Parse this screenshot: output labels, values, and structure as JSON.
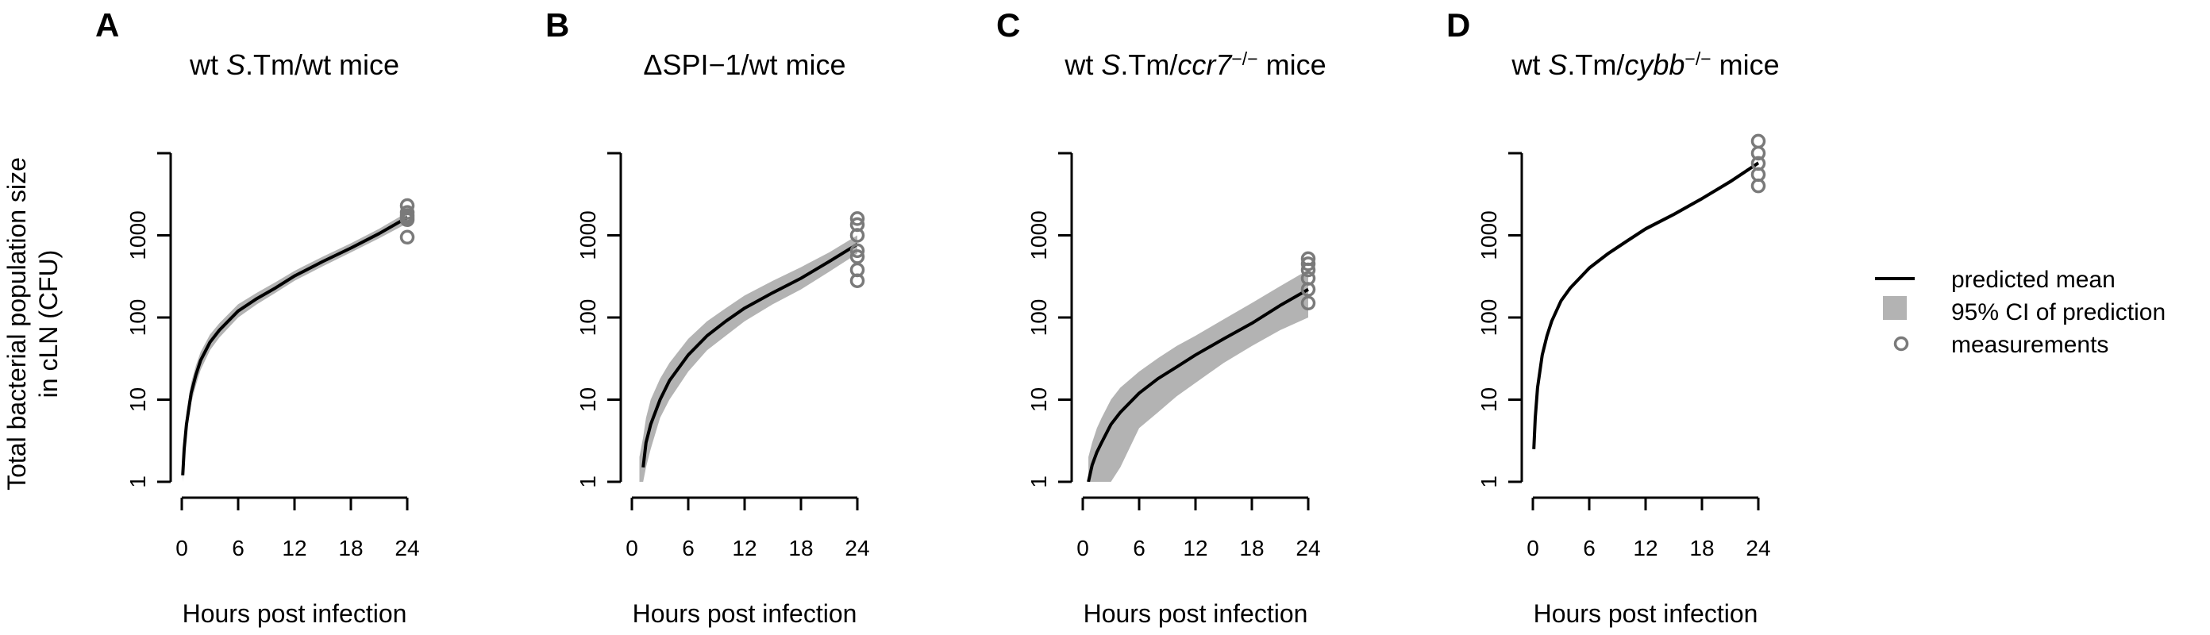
{
  "figure": {
    "ylabel_line1": "Total bacterial population size",
    "ylabel_line2": "in cLN (CFU)",
    "xlabel": "Hours post infection"
  },
  "legend": {
    "mean_label": "predicted mean",
    "ci_label": "95% CI of prediction",
    "meas_label": "measurements"
  },
  "colors": {
    "mean": "#000000",
    "ci": "#b3b3b3",
    "points": "#7a7a7a"
  },
  "chart_data": [
    {
      "type": "line",
      "letter": "A",
      "title_parts": [
        {
          "text": "wt "
        },
        {
          "text": "S",
          "italic": true
        },
        {
          "text": ".Tm/wt mice"
        }
      ],
      "x_ticks": [
        0,
        6,
        12,
        18,
        24
      ],
      "y_ticks": [
        1,
        10,
        100,
        1000
      ],
      "y_tick_labels": [
        "1",
        "10",
        "100",
        "1000"
      ],
      "xlim": [
        0,
        24
      ],
      "ylim": [
        1,
        10000
      ],
      "yscale": "log",
      "xlabel": "Hours post infection",
      "series": [
        {
          "name": "predicted mean",
          "x": [
            0.1,
            0.25,
            0.5,
            1,
            1.5,
            2,
            3,
            4,
            6,
            8,
            10,
            12,
            15,
            18,
            21,
            24
          ],
          "y": [
            1.2,
            2.5,
            5,
            12,
            20,
            30,
            50,
            70,
            120,
            170,
            230,
            320,
            480,
            700,
            1050,
            1650
          ]
        },
        {
          "name": "95% CI of prediction",
          "x": [
            0.1,
            0.25,
            0.5,
            1,
            1.5,
            2,
            3,
            4,
            6,
            8,
            10,
            12,
            15,
            18,
            21,
            24
          ],
          "lower": [
            1,
            1.8,
            3.8,
            9,
            15,
            23,
            40,
            57,
            100,
            145,
            200,
            280,
            420,
            620,
            920,
            1400
          ],
          "upper": [
            1.6,
            3.5,
            7,
            16,
            26,
            38,
            62,
            85,
            145,
            200,
            270,
            370,
            550,
            800,
            1200,
            1900
          ]
        },
        {
          "name": "measurements",
          "x": [
            24,
            24,
            24,
            24,
            24,
            24
          ],
          "y": [
            950,
            1550,
            1650,
            1750,
            1900,
            2300
          ]
        }
      ]
    },
    {
      "type": "line",
      "letter": "B",
      "title_parts": [
        {
          "text": "ΔSPI−1/wt mice"
        }
      ],
      "x_ticks": [
        0,
        6,
        12,
        18,
        24
      ],
      "y_ticks": [
        1,
        10,
        100,
        1000
      ],
      "y_tick_labels": [
        "1",
        "10",
        "100",
        "1000"
      ],
      "xlim": [
        0,
        24
      ],
      "ylim": [
        1,
        10000
      ],
      "yscale": "log",
      "xlabel": "Hours post infection",
      "series": [
        {
          "name": "predicted mean",
          "x": [
            1.2,
            1.5,
            2,
            3,
            4,
            6,
            8,
            10,
            12,
            15,
            18,
            21,
            24
          ],
          "y": [
            1.5,
            3,
            5,
            10,
            17,
            35,
            60,
            90,
            130,
            200,
            300,
            480,
            780
          ]
        },
        {
          "name": "95% CI of prediction",
          "x": [
            0.8,
            1.2,
            1.5,
            2,
            3,
            4,
            6,
            8,
            10,
            12,
            15,
            18,
            21,
            24
          ],
          "lower": [
            1,
            1,
            1.5,
            2.5,
            6,
            10,
            22,
            40,
            60,
            90,
            145,
            220,
            360,
            600
          ],
          "upper": [
            2,
            3.5,
            6,
            10,
            18,
            28,
            55,
            90,
            130,
            185,
            280,
            410,
            620,
            1000
          ]
        },
        {
          "name": "measurements",
          "x": [
            24,
            24,
            24,
            24,
            24,
            24,
            24
          ],
          "y": [
            280,
            380,
            550,
            650,
            1000,
            1350,
            1600
          ]
        }
      ]
    },
    {
      "type": "line",
      "letter": "C",
      "title_parts": [
        {
          "text": "wt "
        },
        {
          "text": "S",
          "italic": true
        },
        {
          "text": ".Tm/"
        },
        {
          "text": "ccr7",
          "italic": true
        },
        {
          "text": "−/−",
          "sup": true
        },
        {
          "text": " mice"
        }
      ],
      "x_ticks": [
        0,
        6,
        12,
        18,
        24
      ],
      "y_ticks": [
        1,
        10,
        100,
        1000
      ],
      "y_tick_labels": [
        "1",
        "10",
        "100",
        "1000"
      ],
      "xlim": [
        0,
        24
      ],
      "ylim": [
        1,
        10000
      ],
      "yscale": "log",
      "xlabel": "Hours post infection",
      "series": [
        {
          "name": "predicted mean",
          "x": [
            0.6,
            1,
            1.5,
            2,
            3,
            4,
            6,
            8,
            10,
            12,
            15,
            18,
            21,
            24
          ],
          "y": [
            1,
            1.6,
            2.3,
            3,
            5,
            7,
            12,
            18,
            25,
            35,
            55,
            85,
            140,
            220
          ]
        },
        {
          "name": "95% CI of prediction",
          "x": [
            0.6,
            1,
            1.5,
            2,
            3,
            4,
            6,
            8,
            10,
            12,
            15,
            18,
            21,
            24
          ],
          "lower": [
            1,
            1,
            1,
            1,
            1,
            1.5,
            4.5,
            7,
            11,
            16,
            28,
            45,
            70,
            100
          ],
          "upper": [
            2,
            3,
            4.5,
            6,
            10,
            14,
            22,
            32,
            45,
            60,
            95,
            150,
            240,
            380
          ]
        },
        {
          "name": "measurements",
          "x": [
            24,
            24,
            24,
            24,
            24,
            24
          ],
          "y": [
            150,
            220,
            300,
            380,
            450,
            520
          ]
        }
      ]
    },
    {
      "type": "line",
      "letter": "D",
      "title_parts": [
        {
          "text": "wt "
        },
        {
          "text": "S",
          "italic": true
        },
        {
          "text": ".Tm/"
        },
        {
          "text": "cybb",
          "italic": true
        },
        {
          "text": "−/−",
          "sup": true
        },
        {
          "text": " mice"
        }
      ],
      "x_ticks": [
        0,
        6,
        12,
        18,
        24
      ],
      "y_ticks": [
        1,
        10,
        100,
        1000
      ],
      "y_tick_labels": [
        "1",
        "10",
        "100",
        "1000"
      ],
      "xlim": [
        0,
        24
      ],
      "ylim": [
        1,
        10000
      ],
      "yscale": "log",
      "xlabel": "Hours post infection",
      "series": [
        {
          "name": "predicted mean",
          "x": [
            0.1,
            0.25,
            0.5,
            1,
            1.5,
            2,
            3,
            4,
            6,
            8,
            10,
            12,
            15,
            18,
            21,
            24
          ],
          "y": [
            2.5,
            6,
            14,
            35,
            60,
            90,
            160,
            230,
            400,
            600,
            850,
            1200,
            1800,
            2800,
            4500,
            7600
          ]
        },
        {
          "name": "95% CI of prediction",
          "x": [
            0.1,
            0.25,
            0.5,
            1,
            1.5,
            2,
            3,
            4,
            6,
            8,
            10,
            12,
            15,
            18,
            21,
            24
          ],
          "lower": [
            2.3,
            5.5,
            13,
            32,
            55,
            84,
            150,
            215,
            375,
            565,
            800,
            1130,
            1700,
            2650,
            4250,
            7200
          ],
          "upper": [
            2.7,
            6.5,
            15,
            38,
            65,
            96,
            170,
            245,
            425,
            635,
            900,
            1270,
            1900,
            2950,
            4750,
            8000
          ]
        },
        {
          "name": "measurements",
          "x": [
            24,
            24,
            24,
            24,
            24
          ],
          "y": [
            4000,
            5500,
            7500,
            10000,
            14000
          ]
        }
      ]
    }
  ]
}
